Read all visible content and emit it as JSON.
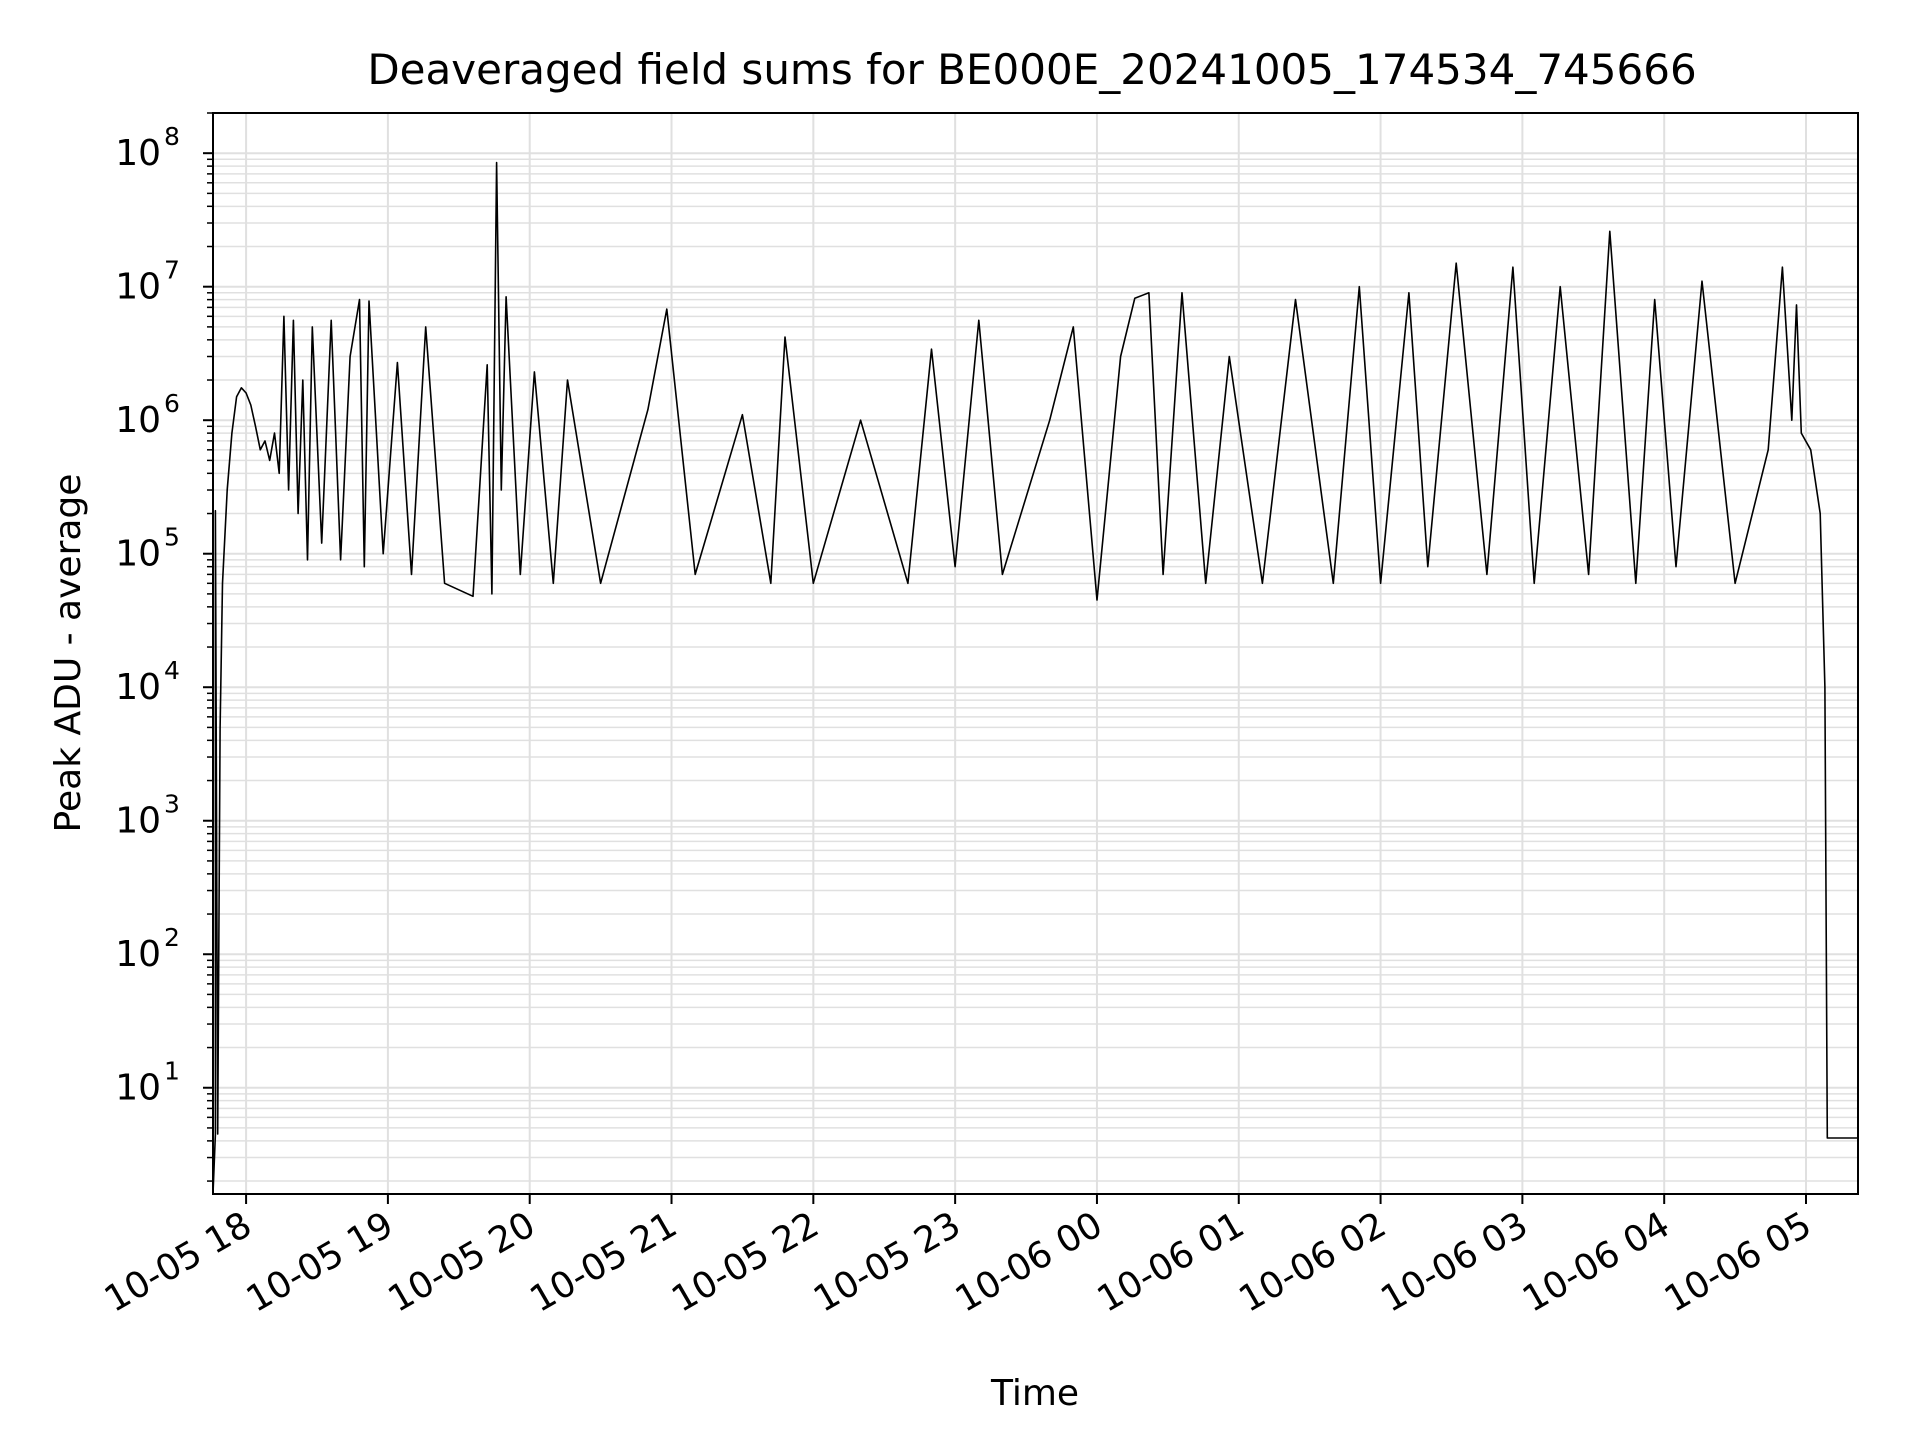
{
  "chart_data": {
    "type": "line",
    "title": "Deaveraged field sums for BE000E_20241005_174534_745666",
    "xlabel": "Time",
    "ylabel": "Peak ADU - average",
    "yscale": "log",
    "xlim": [
      "2024-10-05 17:46",
      "2024-10-06 05:22"
    ],
    "ylim": [
      1.6,
      200000000
    ],
    "grid": true,
    "line_color": "#000000",
    "grid_color": "#e0e0e0",
    "x_ticks": [
      {
        "label": "10-05 18",
        "time": "2024-10-05 18:00"
      },
      {
        "label": "10-05 19",
        "time": "2024-10-05 19:00"
      },
      {
        "label": "10-05 20",
        "time": "2024-10-05 20:00"
      },
      {
        "label": "10-05 21",
        "time": "2024-10-05 21:00"
      },
      {
        "label": "10-05 22",
        "time": "2024-10-05 22:00"
      },
      {
        "label": "10-05 23",
        "time": "2024-10-05 23:00"
      },
      {
        "label": "10-06 00",
        "time": "2024-10-06 00:00"
      },
      {
        "label": "10-06 01",
        "time": "2024-10-06 01:00"
      },
      {
        "label": "10-06 02",
        "time": "2024-10-06 02:00"
      },
      {
        "label": "10-06 03",
        "time": "2024-10-06 03:00"
      },
      {
        "label": "10-06 04",
        "time": "2024-10-06 04:00"
      },
      {
        "label": "10-06 05",
        "time": "2024-10-06 05:00"
      }
    ],
    "y_ticks": [
      {
        "base": "10",
        "exp": "1",
        "value": 10
      },
      {
        "base": "10",
        "exp": "2",
        "value": 100
      },
      {
        "base": "10",
        "exp": "3",
        "value": 1000
      },
      {
        "base": "10",
        "exp": "4",
        "value": 10000
      },
      {
        "base": "10",
        "exp": "5",
        "value": 100000
      },
      {
        "base": "10",
        "exp": "6",
        "value": 1000000
      },
      {
        "base": "10",
        "exp": "7",
        "value": 10000000
      },
      {
        "base": "10",
        "exp": "8",
        "value": 100000000
      }
    ],
    "series": [
      {
        "points": [
          [
            "2024-10-05 17:46",
            1.6
          ],
          [
            "2024-10-05 17:47",
            4.5
          ],
          [
            "2024-10-05 17:47",
            210000
          ],
          [
            "2024-10-05 17:48",
            4.5
          ],
          [
            "2024-10-05 17:49",
            5000
          ],
          [
            "2024-10-05 17:50",
            60000
          ],
          [
            "2024-10-05 17:52",
            300000
          ],
          [
            "2024-10-05 17:54",
            800000
          ],
          [
            "2024-10-05 17:56",
            1500000
          ],
          [
            "2024-10-05 17:58",
            1750000
          ],
          [
            "2024-10-05 18:00",
            1600000
          ],
          [
            "2024-10-05 18:02",
            1300000
          ],
          [
            "2024-10-05 18:04",
            900000
          ],
          [
            "2024-10-05 18:06",
            600000
          ],
          [
            "2024-10-05 18:08",
            700000
          ],
          [
            "2024-10-05 18:10",
            500000
          ],
          [
            "2024-10-05 18:12",
            800000
          ],
          [
            "2024-10-05 18:14",
            400000
          ],
          [
            "2024-10-05 18:16",
            6000000
          ],
          [
            "2024-10-05 18:18",
            300000
          ],
          [
            "2024-10-05 18:20",
            5600000
          ],
          [
            "2024-10-05 18:22",
            200000
          ],
          [
            "2024-10-05 18:24",
            2000000
          ],
          [
            "2024-10-05 18:26",
            90000
          ],
          [
            "2024-10-05 18:28",
            5000000
          ],
          [
            "2024-10-05 18:32",
            120000
          ],
          [
            "2024-10-05 18:36",
            5600000
          ],
          [
            "2024-10-05 18:40",
            90000
          ],
          [
            "2024-10-05 18:44",
            3000000
          ],
          [
            "2024-10-05 18:48",
            8000000
          ],
          [
            "2024-10-05 18:50",
            80000
          ],
          [
            "2024-10-05 18:52",
            7800000
          ],
          [
            "2024-10-05 18:58",
            100000
          ],
          [
            "2024-10-05 19:04",
            2700000
          ],
          [
            "2024-10-05 19:10",
            70000
          ],
          [
            "2024-10-05 19:16",
            5000000
          ],
          [
            "2024-10-05 19:24",
            60000
          ],
          [
            "2024-10-05 19:36",
            48000
          ],
          [
            "2024-10-05 19:42",
            2600000
          ],
          [
            "2024-10-05 19:44",
            50000
          ],
          [
            "2024-10-05 19:46",
            85000000
          ],
          [
            "2024-10-05 19:48",
            300000
          ],
          [
            "2024-10-05 19:50",
            8400000
          ],
          [
            "2024-10-05 19:56",
            70000
          ],
          [
            "2024-10-05 20:02",
            2300000
          ],
          [
            "2024-10-05 20:10",
            60000
          ],
          [
            "2024-10-05 20:16",
            2000000
          ],
          [
            "2024-10-05 20:30",
            60000
          ],
          [
            "2024-10-05 20:50",
            1200000
          ],
          [
            "2024-10-05 20:58",
            6800000
          ],
          [
            "2024-10-05 21:10",
            70000
          ],
          [
            "2024-10-05 21:30",
            1100000
          ],
          [
            "2024-10-05 21:42",
            60000
          ],
          [
            "2024-10-05 21:48",
            4200000
          ],
          [
            "2024-10-05 22:00",
            60000
          ],
          [
            "2024-10-05 22:20",
            1000000
          ],
          [
            "2024-10-05 22:40",
            60000
          ],
          [
            "2024-10-05 22:50",
            3400000
          ],
          [
            "2024-10-05 23:00",
            80000
          ],
          [
            "2024-10-05 23:10",
            5600000
          ],
          [
            "2024-10-05 23:20",
            70000
          ],
          [
            "2024-10-05 23:40",
            1000000
          ],
          [
            "2024-10-05 23:50",
            5000000
          ],
          [
            "2024-10-06 00:00",
            45000
          ],
          [
            "2024-10-06 00:10",
            3000000
          ],
          [
            "2024-10-06 00:16",
            8200000
          ],
          [
            "2024-10-06 00:22",
            9000000
          ],
          [
            "2024-10-06 00:28",
            70000
          ],
          [
            "2024-10-06 00:36",
            9000000
          ],
          [
            "2024-10-06 00:46",
            60000
          ],
          [
            "2024-10-06 00:56",
            3000000
          ],
          [
            "2024-10-06 01:10",
            60000
          ],
          [
            "2024-10-06 01:24",
            8000000
          ],
          [
            "2024-10-06 01:40",
            60000
          ],
          [
            "2024-10-06 01:51",
            10000000
          ],
          [
            "2024-10-06 02:00",
            60000
          ],
          [
            "2024-10-06 02:12",
            9000000
          ],
          [
            "2024-10-06 02:20",
            80000
          ],
          [
            "2024-10-06 02:32",
            15000000
          ],
          [
            "2024-10-06 02:45",
            70000
          ],
          [
            "2024-10-06 02:56",
            14000000
          ],
          [
            "2024-10-06 03:05",
            60000
          ],
          [
            "2024-10-06 03:16",
            10000000
          ],
          [
            "2024-10-06 03:28",
            70000
          ],
          [
            "2024-10-06 03:37",
            26000000
          ],
          [
            "2024-10-06 03:48",
            60000
          ],
          [
            "2024-10-06 03:56",
            8000000
          ],
          [
            "2024-10-06 04:05",
            80000
          ],
          [
            "2024-10-06 04:16",
            11000000
          ],
          [
            "2024-10-06 04:30",
            60000
          ],
          [
            "2024-10-06 04:44",
            600000
          ],
          [
            "2024-10-06 04:50",
            14000000
          ],
          [
            "2024-10-06 04:54",
            1000000
          ],
          [
            "2024-10-06 04:56",
            7300000
          ],
          [
            "2024-10-06 04:58",
            800000
          ],
          [
            "2024-10-06 05:02",
            600000
          ],
          [
            "2024-10-06 05:06",
            200000
          ],
          [
            "2024-10-06 05:08",
            10000
          ],
          [
            "2024-10-06 05:09",
            4.2
          ],
          [
            "2024-10-06 05:22",
            4.2
          ]
        ]
      }
    ]
  }
}
